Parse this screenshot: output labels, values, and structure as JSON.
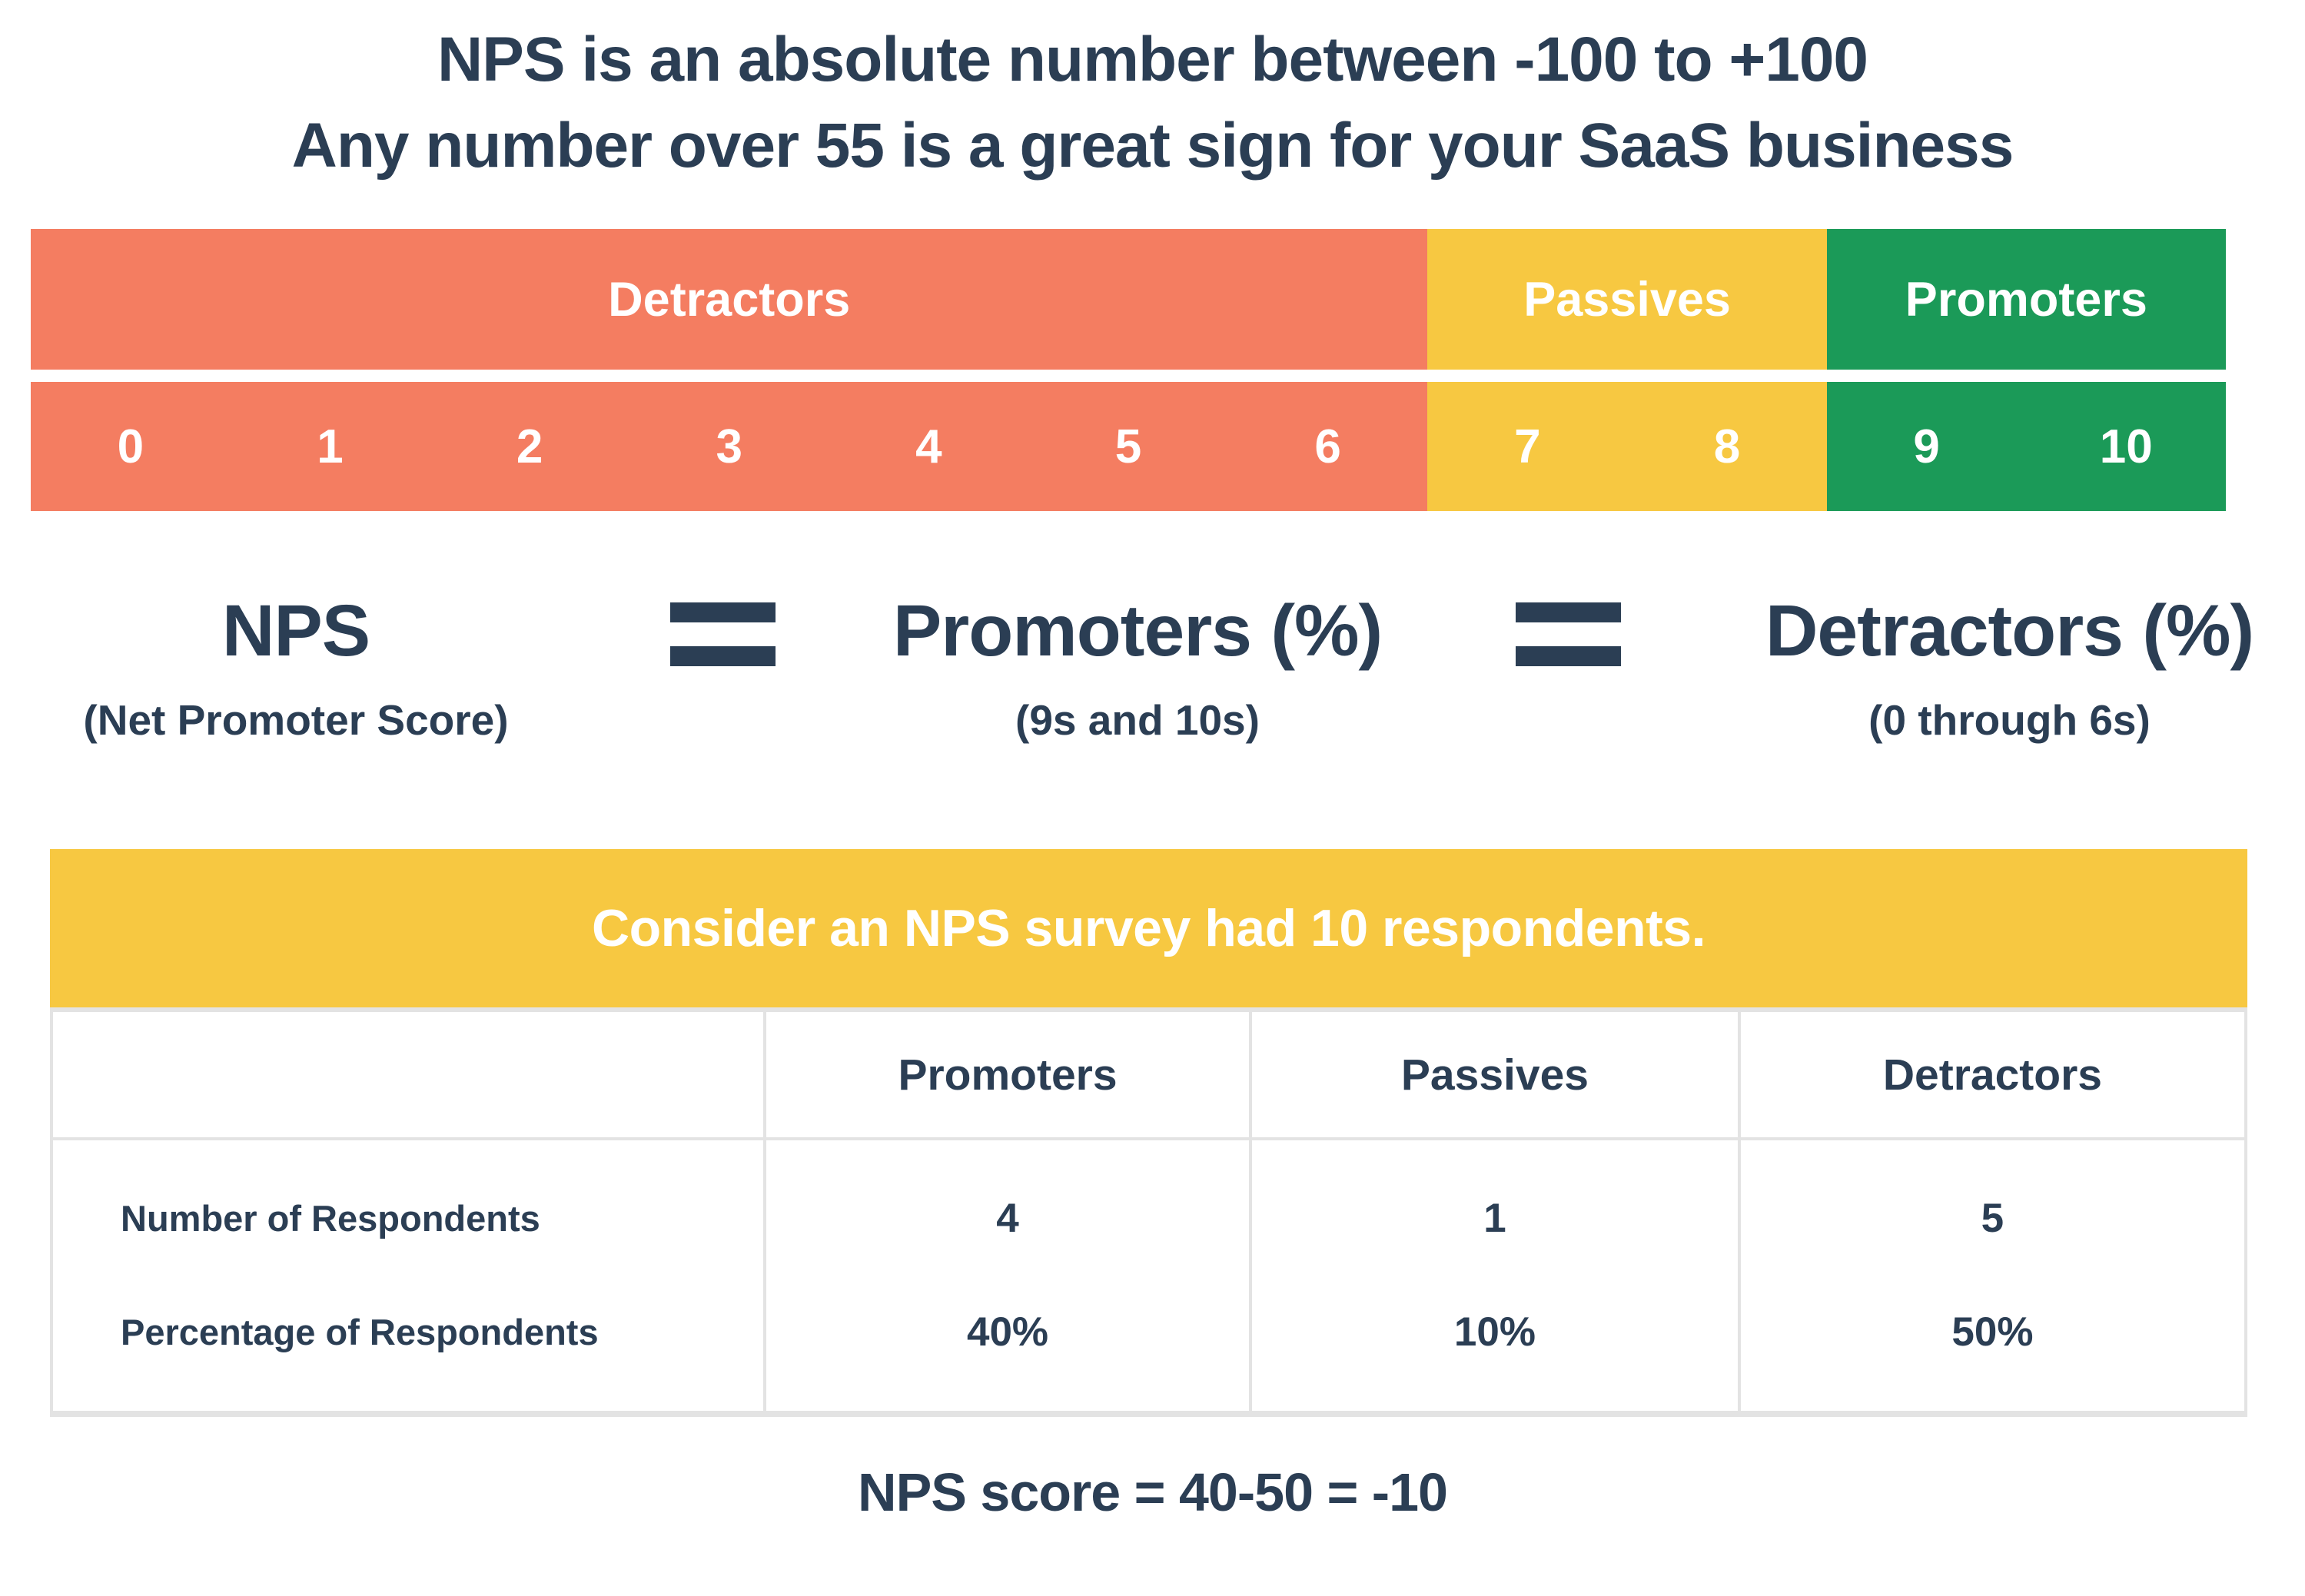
{
  "title": {
    "line1": "NPS is an absolute number between -100 to +100",
    "line2": "Any number over 55 is a great sign for your SaaS business"
  },
  "colors": {
    "navy_text": "#2B3E54",
    "detractors_salmon": "#F47D61",
    "passives_yellow": "#F7C841",
    "promoters_green": "#1B9A58",
    "table_border_gray": "#E3E3E3",
    "white": "#FFFFFF"
  },
  "scale": {
    "segments": [
      {
        "label": "Detractors",
        "color": "#F47D61",
        "numbers": [
          "0",
          "1",
          "2",
          "3",
          "4",
          "5",
          "6"
        ]
      },
      {
        "label": "Passives",
        "color": "#F7C841",
        "numbers": [
          "7",
          "8"
        ]
      },
      {
        "label": "Promoters",
        "color": "#1B9A58",
        "numbers": [
          "9",
          "10"
        ]
      }
    ]
  },
  "formula": {
    "operator_icon": "double-bar-equals",
    "terms": [
      {
        "main": "NPS",
        "sub": "(Net Promoter Score)"
      },
      {
        "main": "Promoters (%)",
        "sub": "(9s and 10s)"
      },
      {
        "main": "Detractors (%)",
        "sub": "(0 through 6s)"
      }
    ]
  },
  "survey": {
    "banner": "Consider an NPS survey had 10 respondents.",
    "columns": [
      "Promoters",
      "Passives",
      "Detractors"
    ],
    "rows": [
      {
        "label": "Number of Respondents",
        "values": [
          "4",
          "1",
          "5"
        ]
      },
      {
        "label": "Percentage of Respondents",
        "values": [
          "40%",
          "10%",
          "50%"
        ]
      }
    ]
  },
  "result": "NPS score = 40-50 = -10"
}
